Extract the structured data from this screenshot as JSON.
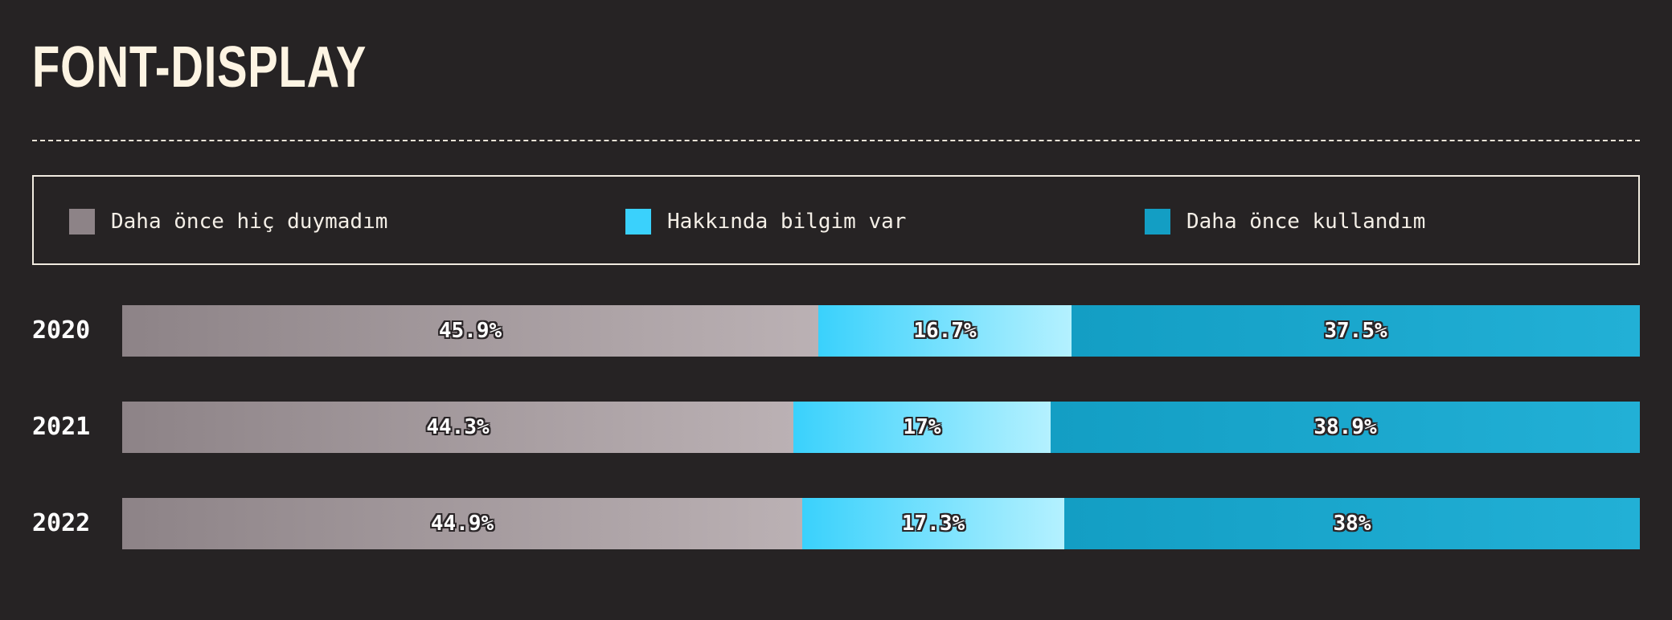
{
  "title": "FONT-DISPLAY",
  "legend": [
    {
      "label": "Daha önce hiç duymadım",
      "color": "#8d8387"
    },
    {
      "label": "Hakkında bilgim var",
      "color": "#3ad1fc"
    },
    {
      "label": "Daha önce kullandım",
      "color": "#139ec4"
    }
  ],
  "chart_data": {
    "type": "bar",
    "orientation": "horizontal",
    "stacked": true,
    "normalized": true,
    "categories": [
      "2020",
      "2021",
      "2022"
    ],
    "series": [
      {
        "name": "Daha önce hiç duymadım",
        "values": [
          45.9,
          44.3,
          44.9
        ],
        "labels": [
          "45.9%",
          "44.3%",
          "44.9%"
        ]
      },
      {
        "name": "Hakkında bilgim var",
        "values": [
          16.7,
          17,
          17.3
        ],
        "labels": [
          "16.7%",
          "17%",
          "17.3%"
        ]
      },
      {
        "name": "Daha önce kullandım",
        "values": [
          37.5,
          38.9,
          38
        ],
        "labels": [
          "37.5%",
          "38.9%",
          "38%"
        ]
      }
    ],
    "title": "FONT-DISPLAY",
    "xlim": [
      0,
      100
    ],
    "legend_position": "top",
    "grid": false
  }
}
